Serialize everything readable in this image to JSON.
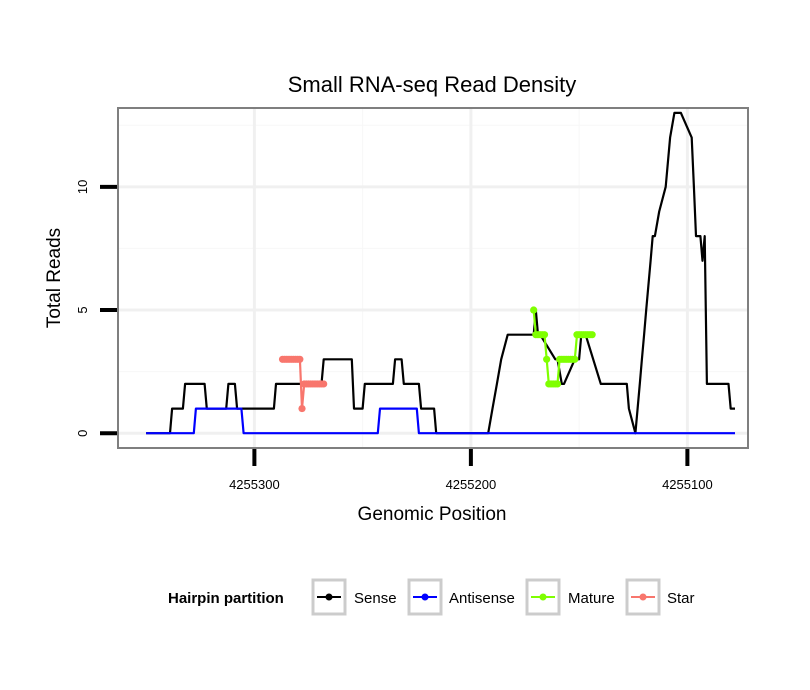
{
  "chart_data": {
    "type": "line",
    "title": "Small RNA-seq Read Density",
    "xlabel": "Genomic Position",
    "ylabel": "Total Reads",
    "xlim": [
      4255363,
      4255072
    ],
    "ylim": [
      -0.6,
      13.2
    ],
    "x_ticks": [
      4255300,
      4255200,
      4255100
    ],
    "x_tick_labels": [
      "4255300",
      "4255200",
      "4255100"
    ],
    "y_ticks": [
      0,
      5,
      10
    ],
    "y_tick_labels": [
      "0",
      "5",
      "10"
    ],
    "grid": true,
    "legend_position": "bottom",
    "legend_title": "Hairpin partition",
    "colors": {
      "Sense": "#000000",
      "Antisense": "#0000ff",
      "Mature": "#7fff00",
      "Star": "#f8766d"
    },
    "series": [
      {
        "name": "Sense",
        "x": [
          4255350,
          4255339,
          4255338,
          4255333,
          4255332,
          4255323,
          4255322,
          4255313,
          4255312,
          4255309,
          4255308,
          4255306,
          4255305,
          4255291,
          4255290,
          4255269,
          4255268,
          4255255,
          4255254,
          4255250,
          4255249,
          4255236,
          4255235,
          4255232,
          4255231,
          4255224,
          4255223,
          4255217,
          4255216,
          4255214,
          4255213,
          4255212,
          4255211,
          4255199,
          4255198,
          4255192,
          4255190,
          4255188,
          4255186,
          4255183,
          4255180,
          4255171,
          4255170,
          4255169,
          4255168,
          4255161,
          4255160,
          4255158,
          4255157,
          4255152,
          4255151,
          4255150,
          4255149,
          4255148,
          4255147,
          4255140,
          4255139,
          4255128,
          4255127,
          4255124,
          4255123,
          4255122,
          4255121,
          4255120,
          4255119,
          4255118,
          4255117,
          4255116,
          4255115,
          4255113,
          4255110,
          4255108,
          4255106,
          4255103,
          4255098,
          4255097,
          4255096,
          4255094,
          4255093,
          4255092,
          4255091,
          4255090,
          4255089,
          4255088,
          4255087,
          4255086,
          4255085,
          4255084,
          4255083,
          4255082,
          4255081,
          4255080,
          4255079,
          4255078
        ],
        "y": [
          0,
          0,
          1,
          1,
          2,
          2,
          1,
          1,
          2,
          2,
          1,
          1,
          1,
          1,
          2,
          2,
          3,
          3,
          1,
          1,
          2,
          2,
          3,
          3,
          2,
          2,
          1,
          1,
          0,
          0,
          0,
          0,
          0,
          0,
          0,
          0,
          1,
          2,
          3,
          4,
          4,
          4,
          5,
          4,
          4,
          3,
          3,
          2,
          2,
          3,
          3,
          3,
          4,
          4,
          4,
          2,
          2,
          2,
          1,
          0,
          1,
          2,
          3,
          4,
          5,
          6,
          7,
          8,
          8,
          9,
          10,
          12,
          13,
          13,
          12,
          10,
          8,
          8,
          7,
          8,
          2,
          2,
          2,
          2,
          2,
          2,
          2,
          2,
          2,
          2,
          2,
          1,
          1,
          1
        ]
      },
      {
        "name": "Antisense",
        "x": [
          4255350,
          4255328,
          4255327,
          4255306,
          4255305,
          4255243,
          4255242,
          4255225,
          4255224,
          4255078
        ],
        "y": [
          0,
          0,
          1,
          1,
          0,
          0,
          1,
          1,
          0,
          0
        ]
      },
      {
        "name": "Mature",
        "x": [
          4255171,
          4255170,
          4255169,
          4255168,
          4255167,
          4255166,
          4255165,
          4255164,
          4255163,
          4255162,
          4255161,
          4255160,
          4255159,
          4255158,
          4255157,
          4255156,
          4255155,
          4255154,
          4255153,
          4255152,
          4255151,
          4255150,
          4255149,
          4255148,
          4255147,
          4255146,
          4255145,
          4255144
        ],
        "y": [
          5,
          4,
          4,
          4,
          4,
          4,
          3,
          2,
          2,
          2,
          2,
          2,
          3,
          3,
          3,
          3,
          3,
          3,
          3,
          3,
          4,
          4,
          4,
          4,
          4,
          4,
          4,
          4
        ]
      },
      {
        "name": "Star",
        "x": [
          4255287,
          4255286,
          4255285,
          4255284,
          4255283,
          4255282,
          4255281,
          4255280,
          4255279,
          4255278,
          4255277,
          4255276,
          4255275,
          4255274,
          4255273,
          4255272,
          4255271,
          4255270,
          4255269,
          4255268
        ],
        "y": [
          3,
          3,
          3,
          3,
          3,
          3,
          3,
          3,
          3,
          1,
          2,
          2,
          2,
          2,
          2,
          2,
          2,
          2,
          2,
          2
        ]
      }
    ]
  }
}
